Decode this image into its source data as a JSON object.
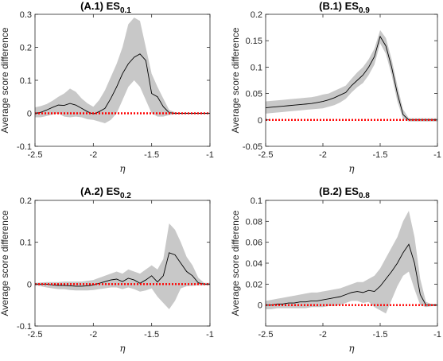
{
  "colors": {
    "band": "#c8c8c8",
    "mean_line": "#000000",
    "zero_line": "#ff0000",
    "axis": "#262626"
  },
  "chart_data": [
    {
      "type": "line",
      "id": "A1",
      "title_main": "(A.1) ES",
      "title_sub": "0.1",
      "xlabel": "η",
      "ylabel": "Average score difference",
      "xlim": [
        -2.5,
        -1
      ],
      "ylim": [
        -0.1,
        0.3
      ],
      "xticks": [
        -2.5,
        -2,
        -1.5,
        -1
      ],
      "xtick_labels": [
        "-2.5",
        "-2",
        "-1.5",
        "-1"
      ],
      "yticks": [
        -0.1,
        0,
        0.1,
        0.2,
        0.3
      ],
      "ytick_labels": [
        "-0.1",
        "0",
        "0.1",
        "0.2",
        "0.3"
      ],
      "series": [
        {
          "role": "mean",
          "x": [
            -2.5,
            -2.45,
            -2.4,
            -2.35,
            -2.3,
            -2.25,
            -2.2,
            -2.15,
            -2.1,
            -2.05,
            -2.0,
            -1.95,
            -1.9,
            -1.85,
            -1.8,
            -1.75,
            -1.7,
            -1.65,
            -1.6,
            -1.55,
            -1.5,
            -1.45,
            -1.4,
            -1.35,
            -1.3,
            -1.25,
            -1.2,
            -1.15,
            -1.1,
            -1.05,
            -1.0
          ],
          "y": [
            0,
            0.003,
            0.01,
            0.018,
            0.025,
            0.024,
            0.03,
            0.025,
            0.015,
            0.005,
            -0.002,
            0.005,
            0.015,
            0.045,
            0.08,
            0.12,
            0.15,
            0.17,
            0.18,
            0.16,
            0.06,
            0.05,
            0.02,
            0.002,
            0,
            0,
            0,
            0,
            0,
            0,
            0
          ]
        },
        {
          "role": "band",
          "x": [
            -2.5,
            -2.45,
            -2.4,
            -2.35,
            -2.3,
            -2.25,
            -2.2,
            -2.15,
            -2.1,
            -2.05,
            -2.0,
            -1.95,
            -1.9,
            -1.85,
            -1.8,
            -1.75,
            -1.7,
            -1.65,
            -1.6,
            -1.55,
            -1.5,
            -1.45,
            -1.4,
            -1.35,
            -1.3,
            -1.25,
            -1.2,
            -1.15,
            -1.1,
            -1.05,
            -1.0
          ],
          "upper": [
            0.018,
            0.022,
            0.028,
            0.038,
            0.05,
            0.06,
            0.075,
            0.065,
            0.045,
            0.03,
            0.02,
            0.04,
            0.07,
            0.11,
            0.15,
            0.2,
            0.27,
            0.29,
            0.28,
            0.2,
            0.12,
            0.08,
            0.045,
            0.01,
            0.003,
            0.002,
            0.002,
            0.002,
            0.002,
            0.002,
            0.002
          ],
          "lower": [
            -0.012,
            -0.012,
            -0.008,
            -0.004,
            0.0,
            -0.01,
            -0.012,
            -0.01,
            -0.012,
            -0.018,
            -0.02,
            -0.025,
            -0.03,
            -0.02,
            0.0,
            0.04,
            0.08,
            0.1,
            0.08,
            0.04,
            0.0,
            -0.01,
            -0.01,
            -0.005,
            -0.003,
            -0.002,
            -0.002,
            -0.002,
            -0.002,
            -0.002,
            -0.002
          ]
        },
        {
          "role": "zero",
          "x": [
            -2.5,
            -1.0
          ],
          "y": [
            0,
            0
          ]
        }
      ]
    },
    {
      "type": "line",
      "id": "B1",
      "title_main": "(B.1) ES",
      "title_sub": "0.9",
      "xlabel": "η",
      "ylabel": "Average score difference",
      "xlim": [
        -2.5,
        -1
      ],
      "ylim": [
        -0.05,
        0.2
      ],
      "xticks": [
        -2.5,
        -2,
        -1.5,
        -1
      ],
      "xtick_labels": [
        "-2.5",
        "-2",
        "-1.5",
        "-1"
      ],
      "yticks": [
        -0.05,
        0,
        0.05,
        0.1,
        0.15,
        0.2
      ],
      "ytick_labels": [
        "-0.05",
        "0",
        "0.05",
        "0.1",
        "0.15",
        "0.2"
      ],
      "series": [
        {
          "role": "mean",
          "x": [
            -2.5,
            -2.45,
            -2.4,
            -2.35,
            -2.3,
            -2.25,
            -2.2,
            -2.15,
            -2.1,
            -2.05,
            -2.0,
            -1.95,
            -1.9,
            -1.85,
            -1.8,
            -1.75,
            -1.7,
            -1.65,
            -1.6,
            -1.55,
            -1.5,
            -1.45,
            -1.4,
            -1.35,
            -1.3,
            -1.25,
            -1.2,
            -1.15,
            -1.1,
            -1.05,
            -1.0
          ],
          "y": [
            0.023,
            0.024,
            0.025,
            0.026,
            0.027,
            0.028,
            0.029,
            0.03,
            0.031,
            0.033,
            0.035,
            0.038,
            0.042,
            0.047,
            0.052,
            0.065,
            0.075,
            0.085,
            0.1,
            0.12,
            0.158,
            0.14,
            0.1,
            0.05,
            0.01,
            0,
            0,
            0,
            0,
            0,
            0
          ]
        },
        {
          "role": "band",
          "x": [
            -2.5,
            -2.45,
            -2.4,
            -2.35,
            -2.3,
            -2.25,
            -2.2,
            -2.15,
            -2.1,
            -2.05,
            -2.0,
            -1.95,
            -1.9,
            -1.85,
            -1.8,
            -1.75,
            -1.7,
            -1.65,
            -1.6,
            -1.55,
            -1.5,
            -1.45,
            -1.4,
            -1.35,
            -1.3,
            -1.25,
            -1.2,
            -1.15,
            -1.1,
            -1.05,
            -1.0
          ],
          "upper": [
            0.035,
            0.036,
            0.037,
            0.038,
            0.039,
            0.04,
            0.041,
            0.042,
            0.043,
            0.045,
            0.048,
            0.05,
            0.055,
            0.06,
            0.065,
            0.078,
            0.09,
            0.1,
            0.115,
            0.135,
            0.17,
            0.155,
            0.115,
            0.065,
            0.02,
            0.003,
            0.003,
            0.003,
            0.003,
            0.003,
            0.003
          ],
          "lower": [
            0.012,
            0.013,
            0.014,
            0.015,
            0.016,
            0.017,
            0.018,
            0.019,
            0.02,
            0.021,
            0.022,
            0.025,
            0.028,
            0.033,
            0.04,
            0.052,
            0.062,
            0.07,
            0.085,
            0.105,
            0.145,
            0.125,
            0.085,
            0.035,
            0.002,
            -0.003,
            -0.003,
            -0.003,
            -0.003,
            -0.003,
            -0.003
          ]
        },
        {
          "role": "zero",
          "x": [
            -2.5,
            -1.0
          ],
          "y": [
            0,
            0
          ]
        }
      ]
    },
    {
      "type": "line",
      "id": "A2",
      "title_main": "(A.2) ES",
      "title_sub": "0.2",
      "xlabel": "η",
      "ylabel": "Average score difference",
      "xlim": [
        -2.5,
        -1
      ],
      "ylim": [
        -0.1,
        0.2
      ],
      "xticks": [
        -2.5,
        -2,
        -1.5,
        -1
      ],
      "xtick_labels": [
        "-2.5",
        "-2",
        "-1.5",
        "-1"
      ],
      "yticks": [
        -0.1,
        0,
        0.1,
        0.2
      ],
      "ytick_labels": [
        "-0.1",
        "0",
        "0.1",
        "0.2"
      ],
      "series": [
        {
          "role": "mean",
          "x": [
            -2.5,
            -2.45,
            -2.4,
            -2.35,
            -2.3,
            -2.25,
            -2.2,
            -2.15,
            -2.1,
            -2.05,
            -2.0,
            -1.95,
            -1.9,
            -1.85,
            -1.8,
            -1.75,
            -1.7,
            -1.65,
            -1.6,
            -1.55,
            -1.5,
            -1.45,
            -1.4,
            -1.35,
            -1.3,
            -1.25,
            -1.2,
            -1.15,
            -1.1,
            -1.05,
            -1.0
          ],
          "y": [
            0,
            0,
            0,
            -0.002,
            -0.003,
            -0.003,
            -0.004,
            -0.005,
            -0.005,
            -0.004,
            -0.002,
            0.002,
            0.006,
            0.01,
            0.012,
            0.006,
            0.014,
            0.01,
            0.002,
            0.01,
            0.02,
            0.005,
            0.02,
            0.075,
            0.07,
            0.05,
            0.03,
            0.02,
            0.003,
            0,
            0
          ]
        },
        {
          "role": "band",
          "x": [
            -2.5,
            -2.45,
            -2.4,
            -2.35,
            -2.3,
            -2.25,
            -2.2,
            -2.15,
            -2.1,
            -2.05,
            -2.0,
            -1.95,
            -1.9,
            -1.85,
            -1.8,
            -1.75,
            -1.7,
            -1.65,
            -1.6,
            -1.55,
            -1.5,
            -1.45,
            -1.4,
            -1.35,
            -1.3,
            -1.25,
            -1.2,
            -1.15,
            -1.1,
            -1.05,
            -1.0
          ],
          "upper": [
            0.003,
            0.004,
            0.005,
            0.005,
            0.005,
            0.006,
            0.006,
            0.006,
            0.006,
            0.008,
            0.01,
            0.015,
            0.02,
            0.025,
            0.03,
            0.025,
            0.035,
            0.03,
            0.025,
            0.035,
            0.045,
            0.035,
            0.06,
            0.145,
            0.13,
            0.1,
            0.065,
            0.045,
            0.015,
            0.003,
            0.003
          ],
          "lower": [
            -0.003,
            -0.005,
            -0.008,
            -0.01,
            -0.012,
            -0.012,
            -0.014,
            -0.015,
            -0.015,
            -0.015,
            -0.014,
            -0.012,
            -0.01,
            -0.008,
            -0.008,
            -0.012,
            -0.008,
            -0.012,
            -0.018,
            -0.015,
            -0.01,
            -0.03,
            -0.045,
            -0.06,
            -0.04,
            -0.01,
            -0.005,
            -0.004,
            -0.003,
            -0.003,
            -0.003
          ]
        },
        {
          "role": "zero",
          "x": [
            -2.5,
            -1.0
          ],
          "y": [
            0,
            0
          ]
        }
      ]
    },
    {
      "type": "line",
      "id": "B2",
      "title_main": "(B.2) ES",
      "title_sub": "0.8",
      "xlabel": "η",
      "ylabel": "Average score difference",
      "xlim": [
        -2.5,
        -1
      ],
      "ylim": [
        -0.02,
        0.1
      ],
      "xticks": [
        -2.5,
        -2,
        -1.5,
        -1
      ],
      "xtick_labels": [
        "-2.5",
        "-2",
        "-1.5",
        "-1"
      ],
      "yticks": [
        0,
        0.02,
        0.04,
        0.06,
        0.08,
        0.1
      ],
      "ytick_labels": [
        "0",
        "0.02",
        "0.04",
        "0.06",
        "0.08",
        "0.1"
      ],
      "series": [
        {
          "role": "mean",
          "x": [
            -2.5,
            -2.45,
            -2.4,
            -2.35,
            -2.3,
            -2.25,
            -2.2,
            -2.15,
            -2.1,
            -2.05,
            -2.0,
            -1.95,
            -1.9,
            -1.85,
            -1.8,
            -1.75,
            -1.7,
            -1.65,
            -1.6,
            -1.55,
            -1.5,
            -1.45,
            -1.4,
            -1.35,
            -1.3,
            -1.25,
            -1.2,
            -1.15,
            -1.1,
            -1.05,
            -1.0
          ],
          "y": [
            0,
            0,
            0.001,
            0.001,
            0.002,
            0.002,
            0.003,
            0.003,
            0.004,
            0.004,
            0.005,
            0.006,
            0.007,
            0.008,
            0.01,
            0.012,
            0.013,
            0.012,
            0.014,
            0.013,
            0.018,
            0.025,
            0.032,
            0.04,
            0.05,
            0.058,
            0.04,
            0.01,
            0,
            0,
            0
          ]
        },
        {
          "role": "band",
          "x": [
            -2.5,
            -2.45,
            -2.4,
            -2.35,
            -2.3,
            -2.25,
            -2.2,
            -2.15,
            -2.1,
            -2.05,
            -2.0,
            -1.95,
            -1.9,
            -1.85,
            -1.8,
            -1.75,
            -1.7,
            -1.65,
            -1.6,
            -1.55,
            -1.5,
            -1.45,
            -1.4,
            -1.35,
            -1.3,
            -1.25,
            -1.2,
            -1.15,
            -1.1,
            -1.05,
            -1.0
          ],
          "upper": [
            0.004,
            0.005,
            0.006,
            0.007,
            0.008,
            0.009,
            0.01,
            0.011,
            0.012,
            0.012,
            0.013,
            0.014,
            0.015,
            0.016,
            0.018,
            0.02,
            0.022,
            0.022,
            0.025,
            0.028,
            0.035,
            0.045,
            0.055,
            0.065,
            0.08,
            0.09,
            0.065,
            0.025,
            0.003,
            0.001,
            0.001
          ],
          "lower": [
            -0.004,
            -0.004,
            -0.003,
            -0.003,
            -0.003,
            -0.003,
            -0.003,
            -0.003,
            -0.002,
            -0.002,
            -0.002,
            -0.001,
            -0.001,
            0.0,
            0.002,
            0.004,
            0.004,
            0.002,
            0.003,
            -0.002,
            -0.005,
            -0.008,
            0.005,
            0.018,
            0.028,
            0.032,
            0.015,
            0.0,
            -0.002,
            -0.001,
            -0.001
          ]
        },
        {
          "role": "zero",
          "x": [
            -2.5,
            -1.0
          ],
          "y": [
            0,
            0
          ]
        }
      ]
    }
  ]
}
